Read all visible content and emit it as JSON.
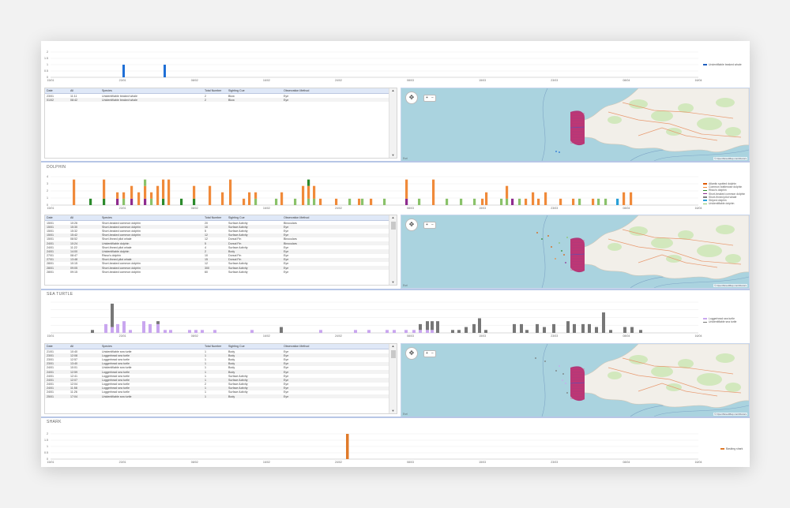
{
  "sections": {
    "whale": {
      "title": "",
      "chart": {
        "yticks": [
          "2",
          "1.5",
          "1",
          "0.5",
          "0"
        ],
        "xticks": [
          "15/01",
          "23/01",
          "08/02",
          "16/02",
          "24/02",
          "08/03",
          "15/03",
          "23/03",
          "08/04",
          "16/04"
        ]
      },
      "legend": [
        {
          "label": "Undentifiable beaked whale",
          "color": "#1f5fbf"
        }
      ],
      "table": {
        "columns": [
          "Date",
          "All",
          "Species",
          "Total Number",
          "Sighting Cue",
          "Observation Method"
        ],
        "rows": [
          [
            "23/01",
            "11:11",
            "Unidentifiable beaked whale",
            "2",
            "Blow",
            "Eye"
          ],
          [
            "01/02",
            "08:42",
            "Unidentifiable beaked whale",
            "2",
            "Blow",
            "Eye"
          ]
        ]
      }
    },
    "dolphin": {
      "title": "DOLPHIN",
      "chart": {
        "yticks": [
          "4",
          "3",
          "2",
          "1",
          "0"
        ],
        "xticks": [
          "15/01",
          "23/01",
          "08/02",
          "16/02",
          "24/02",
          "08/03",
          "15/03",
          "23/03",
          "08/04",
          "16/04"
        ]
      },
      "legend": [
        {
          "label": "Atlantic spotted dolphin",
          "color": "#e05a00"
        },
        {
          "label": "Common bottlenose dolphin",
          "color": "#f08a3a"
        },
        {
          "label": "Risso's dolphin",
          "color": "#2c8a2c"
        },
        {
          "label": "Short-beaked common dolphin",
          "color": "#8e2b8e"
        },
        {
          "label": "Short-finned pilot whale",
          "color": "#7f7f7f"
        },
        {
          "label": "Striped dolphin",
          "color": "#2aa0d8"
        },
        {
          "label": "Unidentifiable dolphin",
          "color": "#8ac26a"
        }
      ],
      "table": {
        "columns": [
          "Date",
          "All",
          "Species",
          "Total Number",
          "Sighting Cue",
          "Observation Method"
        ],
        "rows": [
          [
            "15/01",
            "10:26",
            "Short-beaked common dolphin",
            "20",
            "Surface Activity",
            "Binoculars"
          ],
          [
            "15/01",
            "15:30",
            "Short-beaked common dolphin",
            "10",
            "Surface Activity",
            "Eye"
          ],
          [
            "15/01",
            "15:32",
            "Short-beaked common dolphin",
            "5",
            "Surface Activity",
            "Eye"
          ],
          [
            "15/01",
            "15:42",
            "Short-beaked common dolphin",
            "12",
            "Surface Activity",
            "Eye"
          ],
          [
            "15/01",
            "08:52",
            "Short-finned pilot whale",
            "12",
            "Dorsal Fin",
            "Binoculars"
          ],
          [
            "24/01",
            "10:24",
            "Unidentifiable dolphin",
            "5",
            "Dorsal Fin",
            "Binoculars"
          ],
          [
            "24/01",
            "11:22",
            "Short-finned pilot whale",
            "4",
            "Surface Activity",
            "Eye"
          ],
          [
            "24/01",
            "14:00",
            "Unidentifiable dolphin",
            "2",
            "Body",
            "Eye"
          ],
          [
            "27/01",
            "08:47",
            "Risso's dolphin",
            "10",
            "Dorsal Fin",
            "Eye"
          ],
          [
            "27/01",
            "13:48",
            "Short-finned pilot whale",
            "15",
            "Dorsal Fin",
            "Eye"
          ],
          [
            "28/01",
            "10:15",
            "Short-beaked common dolphin",
            "12",
            "Surface Activity",
            "Eye"
          ],
          [
            "28/01",
            "09:05",
            "Short-beaked common dolphin",
            "300",
            "Surface Activity",
            "Eye"
          ],
          [
            "28/01",
            "09:15",
            "Short-beaked common dolphin",
            "60",
            "Surface Activity",
            "Eye"
          ]
        ]
      }
    },
    "turtle": {
      "title": "SEA TURTLE",
      "chart": {
        "yticks": [],
        "xticks": [
          "15/01",
          "23/01",
          "08/02",
          "16/02",
          "24/02",
          "08/03",
          "15/03",
          "23/03",
          "08/04",
          "16/04"
        ]
      },
      "legend": [
        {
          "label": "Loggerhead sea turtle",
          "color": "#c9a6ef"
        },
        {
          "label": "Unidentifiable sea turtle",
          "color": "#777777"
        }
      ],
      "table": {
        "columns": [
          "Date",
          "All",
          "Species",
          "Total Number",
          "Sighting Cue",
          "Observation Method"
        ],
        "rows": [
          [
            "21/01",
            "10:40",
            "Unidentifiable sea turtle",
            "1",
            "Body",
            "Eye"
          ],
          [
            "23/01",
            "12:08",
            "Loggerhead sea turtle",
            "1",
            "Body",
            "Eye"
          ],
          [
            "23/01",
            "12:57",
            "Loggerhead sea turtle",
            "1",
            "Body",
            "Eye"
          ],
          [
            "23/01",
            "13:40",
            "Loggerhead sea turtle",
            "1",
            "Body",
            "Eye"
          ],
          [
            "24/01",
            "10:01",
            "Unidentifiable sea turtle",
            "1",
            "Body",
            "Eye"
          ],
          [
            "24/01",
            "12:59",
            "Loggerhead sea turtle",
            "1",
            "Body",
            "Eye"
          ],
          [
            "24/01",
            "12:41",
            "Loggerhead sea turtle",
            "1",
            "Surface Activity",
            "Eye"
          ],
          [
            "24/01",
            "12:07",
            "Loggerhead sea turtle",
            "1",
            "Surface Activity",
            "Eye"
          ],
          [
            "24/01",
            "12:04",
            "Loggerhead sea turtle",
            "2",
            "Surface Activity",
            "Eye"
          ],
          [
            "24/01",
            "11:58",
            "Loggerhead sea turtle",
            "1",
            "Surface Activity",
            "Eye"
          ],
          [
            "24/01",
            "11:26",
            "Loggerhead sea turtle",
            "1",
            "Surface Activity",
            "Eye"
          ],
          [
            "25/01",
            "17:04",
            "Unidentifiable sea turtle",
            "1",
            "Body",
            "Eye"
          ]
        ]
      }
    },
    "shark": {
      "title": "SHARK",
      "chart": {
        "yticks": [
          "2",
          "1.5",
          "1",
          "0.5",
          "0"
        ],
        "xticks": [
          "15/01",
          "23/01",
          "08/02",
          "16/02",
          "24/02",
          "08/03",
          "15/03",
          "23/03",
          "08/04",
          "16/04"
        ]
      },
      "legend": [
        {
          "label": "Basking shark",
          "color": "#e07a2a"
        }
      ]
    }
  },
  "map": {
    "attribution": "© OpenStreetMap contributors",
    "watermark": "Esri",
    "zoom_in": "+",
    "zoom_out": "−",
    "nav_icon": "✥"
  },
  "chart_data": [
    {
      "type": "bar",
      "title": "",
      "legend": [
        "Undentifiable beaked whale"
      ],
      "ylim": [
        0,
        2
      ],
      "points": [
        {
          "x": "23/01",
          "value": 1
        },
        {
          "x": "01/02",
          "value": 1
        }
      ]
    },
    {
      "type": "bar",
      "title": "DOLPHIN",
      "ylim": [
        0,
        4
      ],
      "stacked": true,
      "series": [
        "Atlantic spotted dolphin",
        "Common bottlenose dolphin",
        "Risso's dolphin",
        "Short-beaked common dolphin",
        "Short-finned pilot whale",
        "Striped dolphin",
        "Unidentifiable dolphin"
      ]
    },
    {
      "type": "bar",
      "title": "SEA TURTLE",
      "stacked": true,
      "series": [
        "Loggerhead sea turtle",
        "Unidentifiable sea turtle"
      ]
    },
    {
      "type": "bar",
      "title": "SHARK",
      "legend": [
        "Basking shark"
      ],
      "ylim": [
        0,
        2
      ],
      "points": [
        {
          "x": "24/02",
          "value": 2
        }
      ]
    }
  ]
}
